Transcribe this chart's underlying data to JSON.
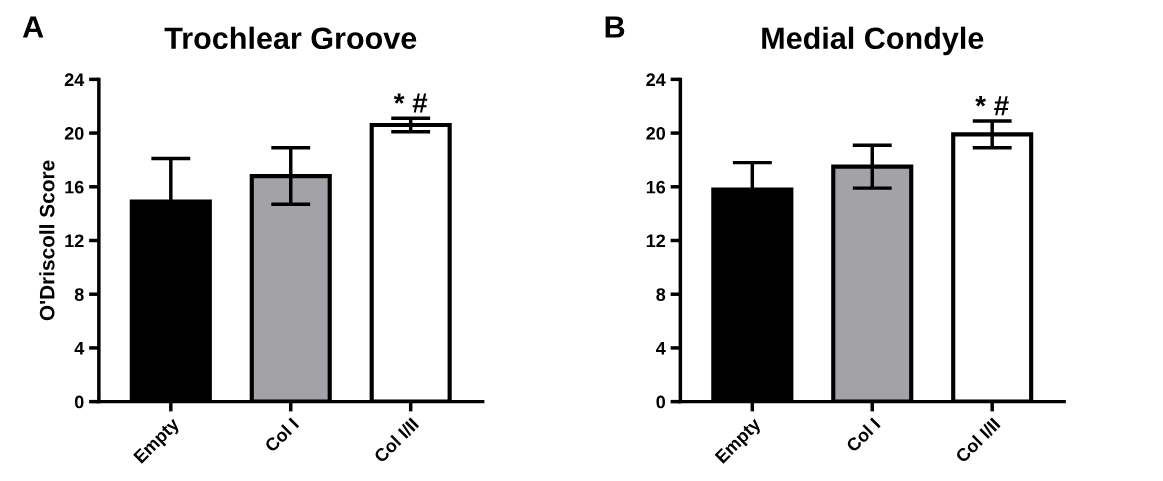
{
  "chart_data": [
    {
      "type": "bar",
      "title": "Trochlear Groove",
      "ylabel": "O'Driscoll Score",
      "categories": [
        "Empty",
        "Col I",
        "Col I/II"
      ],
      "values": [
        14.9,
        16.8,
        20.6
      ],
      "errors": [
        3.2,
        2.1,
        0.5
      ],
      "colors": [
        "#000000",
        "#a3a2a7",
        "#ffffff"
      ],
      "ylim": [
        0,
        24
      ],
      "yticks": [
        0,
        4,
        8,
        12,
        16,
        20,
        24
      ],
      "grid": false,
      "legend": false,
      "annotations": [
        "A",
        {
          "text": "* #",
          "x": "Col I/II",
          "y": 21.1
        }
      ]
    },
    {
      "type": "bar",
      "title": "Medial Condyle",
      "categories": [
        "Empty",
        "Col I",
        "Col I/II"
      ],
      "values": [
        15.8,
        17.5,
        19.9
      ],
      "errors": [
        2.0,
        1.6,
        1.0
      ],
      "colors": [
        "#000000",
        "#a3a2a7",
        "#ffffff"
      ],
      "ylim": [
        0,
        24
      ],
      "yticks": [
        0,
        4,
        8,
        12,
        16,
        20,
        24
      ],
      "grid": false,
      "legend": false,
      "annotations": [
        "B",
        {
          "text": "* #",
          "x": "Col I/II",
          "y": 20.9
        }
      ]
    }
  ]
}
